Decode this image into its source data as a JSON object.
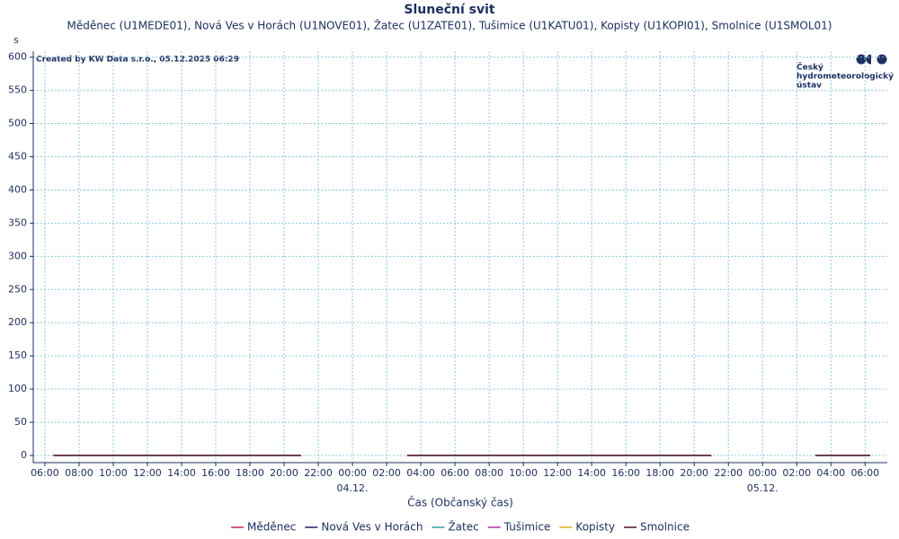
{
  "chart_data": {
    "type": "line",
    "title": "Sluneční svit",
    "subtitle": "Měděnec (U1MEDE01), Nová Ves v Horách (U1NOVE01), Žatec (U1ZATE01), Tušimice (U1KATU01), Kopisty (U1KOPI01), Smolnice (U1SMOL01)",
    "y_unit": "s",
    "x_label": "Čas (Občanský čas)",
    "created_by": "Created by KW Data s.r.o., 05.12.2025 06:29",
    "logo": [
      "Český",
      "hydrometeorologický",
      "ústav"
    ],
    "x": [
      0.5,
      15,
      18,
      21.2,
      39,
      42,
      45.1,
      48.3
    ],
    "series": [
      {
        "name": "Měděnec",
        "color": "#c0304a",
        "values": [
          0,
          0,
          null,
          0,
          0,
          null,
          0,
          0
        ]
      },
      {
        "name": "Nová Ves v Horách",
        "color": "#1c1c6c",
        "values": [
          0,
          0,
          null,
          0,
          0,
          null,
          0,
          0
        ]
      },
      {
        "name": "Žatec",
        "color": "#3a9a9a",
        "values": [
          0,
          0,
          null,
          0,
          0,
          null,
          0,
          0
        ]
      },
      {
        "name": "Tušimice",
        "color": "#b0309a",
        "values": [
          0,
          0,
          null,
          0,
          0,
          null,
          0,
          0
        ]
      },
      {
        "name": "Kopisty",
        "color": "#e0b020",
        "values": [
          0,
          0,
          null,
          0,
          0,
          null,
          0,
          0
        ]
      },
      {
        "name": "Smolnice",
        "color": "#4a1030",
        "values": [
          0,
          0,
          null,
          0,
          0,
          null,
          0,
          0
        ]
      }
    ],
    "xlim": [
      -0.68,
      49.3
    ],
    "xticks": [
      {
        "value": 0,
        "label": "06:00"
      },
      {
        "value": 2,
        "label": "08:00"
      },
      {
        "value": 4,
        "label": "10:00"
      },
      {
        "value": 6,
        "label": "12:00"
      },
      {
        "value": 8,
        "label": "14:00"
      },
      {
        "value": 10,
        "label": "16:00"
      },
      {
        "value": 12,
        "label": "18:00"
      },
      {
        "value": 14,
        "label": "20:00"
      },
      {
        "value": 16,
        "label": "22:00"
      },
      {
        "value": 18,
        "label": "00:00"
      },
      {
        "value": 20,
        "label": "02:00"
      },
      {
        "value": 22,
        "label": "04:00"
      },
      {
        "value": 24,
        "label": "06:00"
      },
      {
        "value": 26,
        "label": "08:00"
      },
      {
        "value": 28,
        "label": "10:00"
      },
      {
        "value": 30,
        "label": "12:00"
      },
      {
        "value": 32,
        "label": "14:00"
      },
      {
        "value": 34,
        "label": "16:00"
      },
      {
        "value": 36,
        "label": "18:00"
      },
      {
        "value": 38,
        "label": "20:00"
      },
      {
        "value": 40,
        "label": "22:00"
      },
      {
        "value": 42,
        "label": "00:00"
      },
      {
        "value": 44,
        "label": "02:00"
      },
      {
        "value": 46,
        "label": "04:00"
      },
      {
        "value": 48,
        "label": "06:00"
      }
    ],
    "date_ticks": [
      {
        "value": 18,
        "label": "04.12."
      },
      {
        "value": 42,
        "label": "05.12."
      }
    ],
    "ylim": [
      -10.8,
      609
    ],
    "yticks": [
      0,
      50,
      100,
      150,
      200,
      250,
      300,
      350,
      400,
      450,
      500,
      550,
      600
    ],
    "grid": true
  }
}
